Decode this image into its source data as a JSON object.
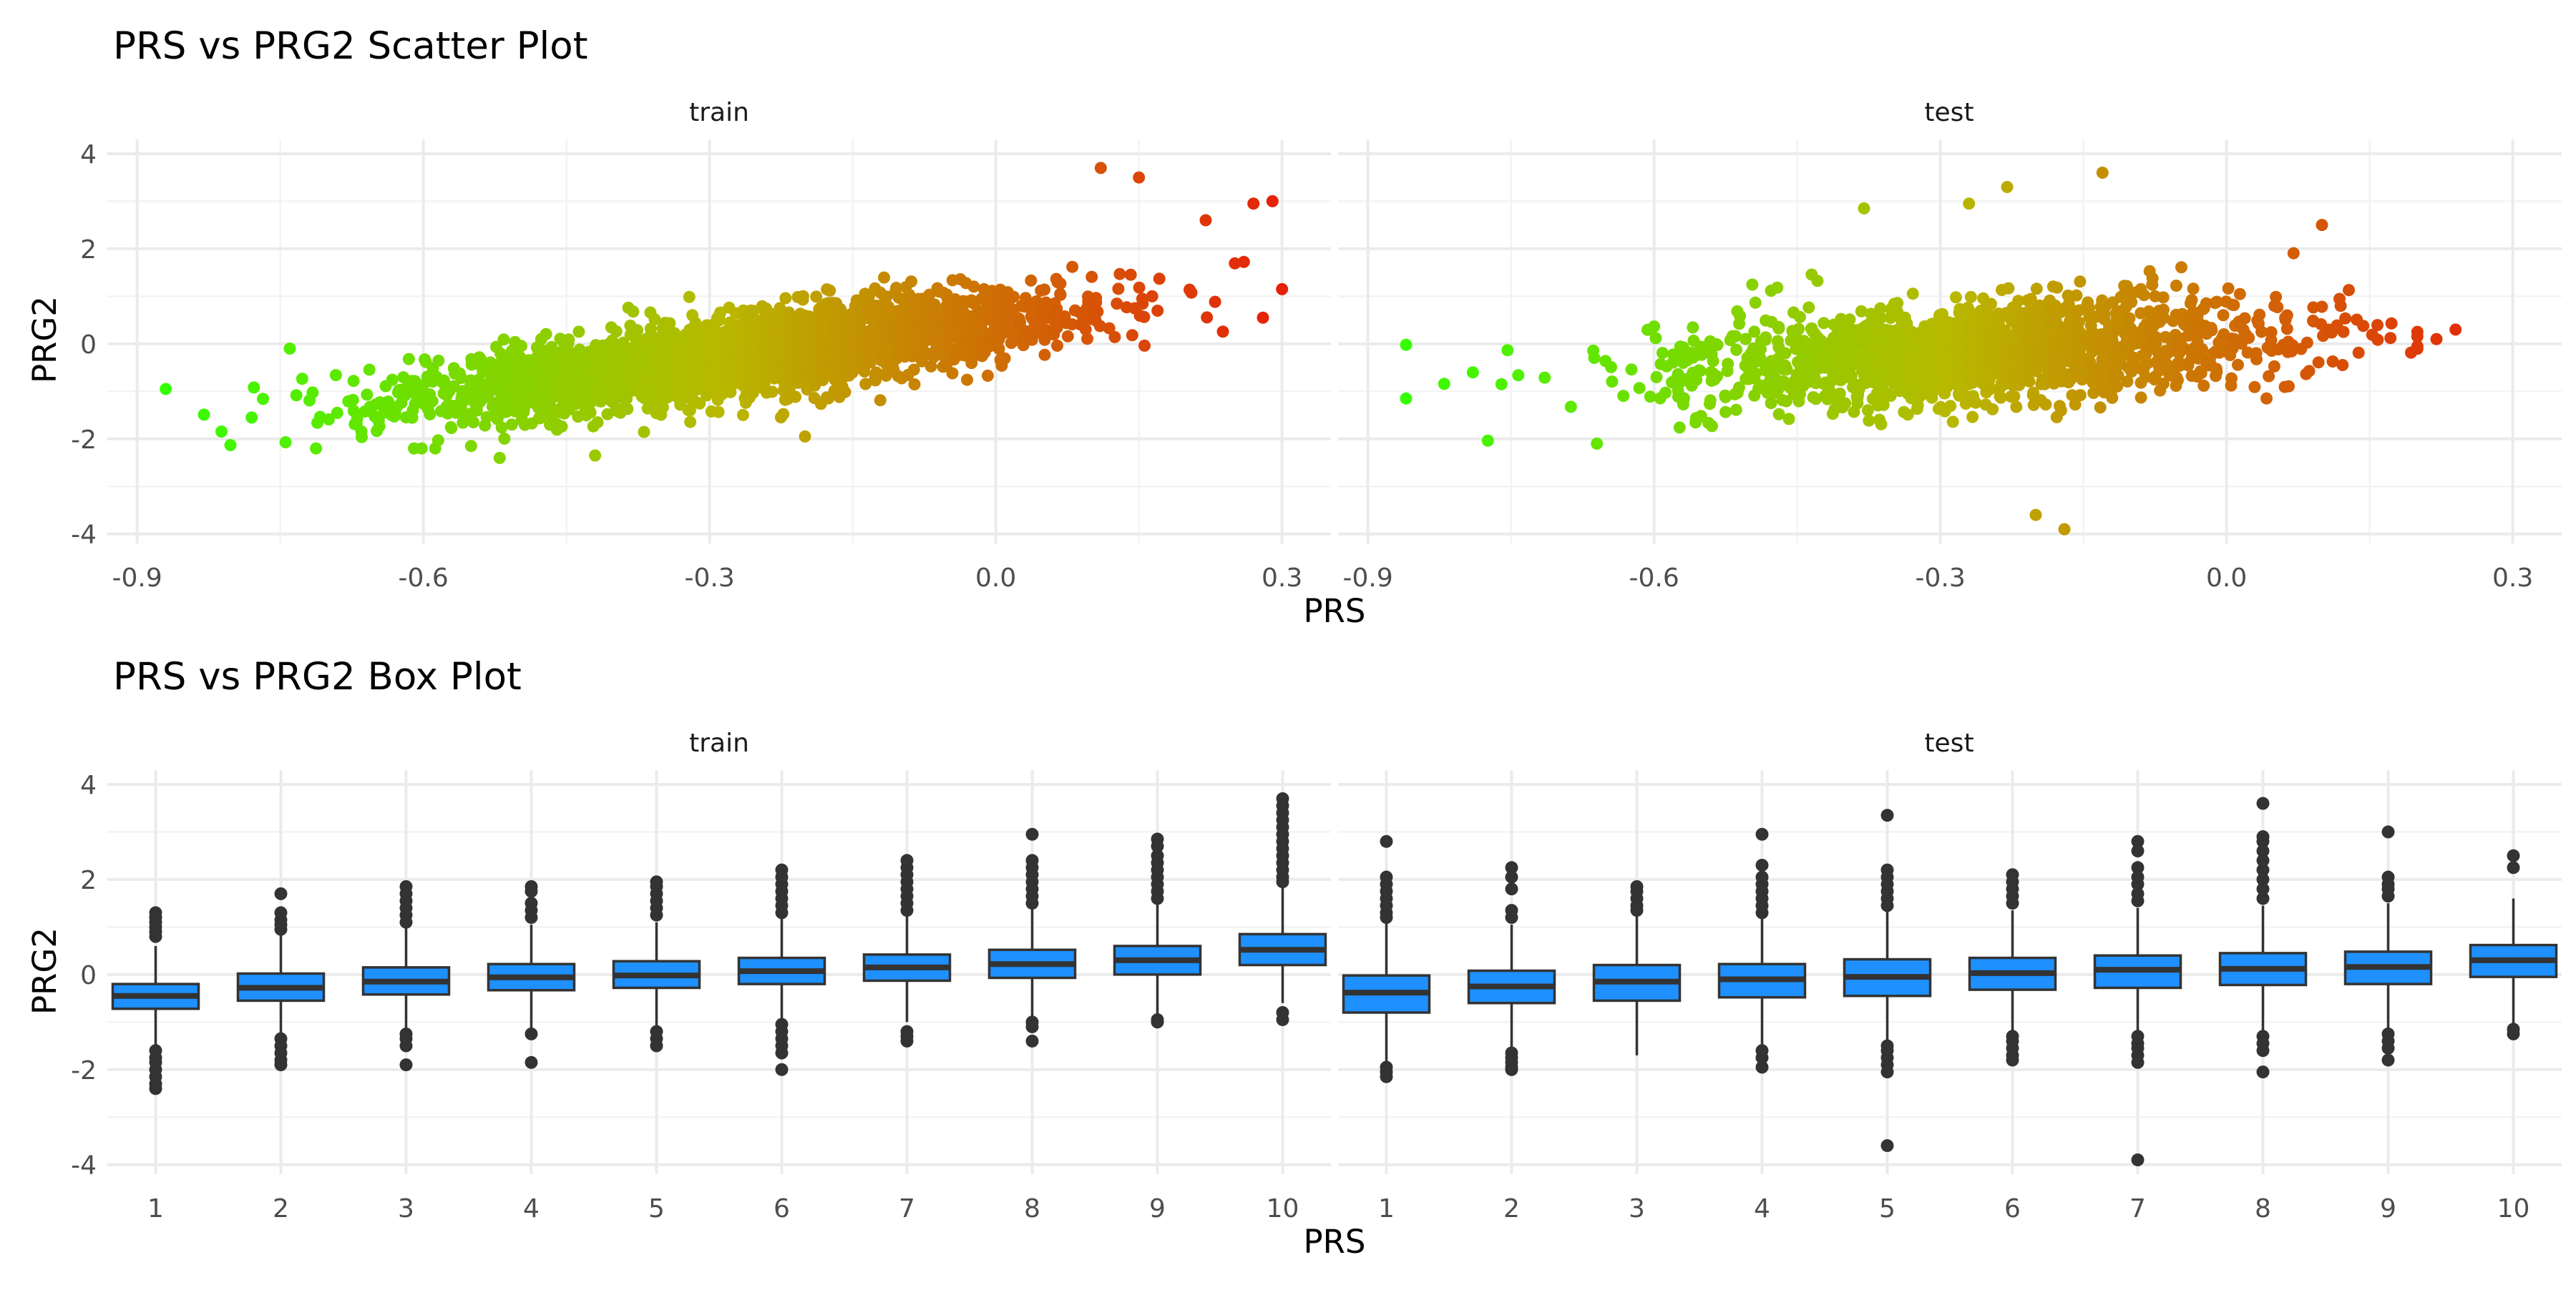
{
  "chart_data": [
    {
      "type": "scatter",
      "title": "PRS vs PRG2 Scatter Plot",
      "xlabel": "PRS",
      "ylabel": "PRG2",
      "facets": [
        "train",
        "test"
      ],
      "xlim": [
        -0.92,
        0.34
      ],
      "ylim": [
        -4.2,
        4.3
      ],
      "xticks": [
        -0.9,
        -0.6,
        -0.3,
        0.0,
        0.3
      ],
      "xtick_labels": [
        "-0.9",
        "-0.6",
        "-0.3",
        "0.0",
        "0.3"
      ],
      "yticks": [
        -4,
        -2,
        0,
        2,
        4
      ],
      "ytick_labels": [
        "-4",
        "-2",
        "0",
        "2",
        "4"
      ],
      "grid": true,
      "color_gradient": {
        "low": "#33ff00",
        "mid": "#b8b800",
        "high": "#e6200a",
        "mapped_to": "PRS"
      },
      "train": {
        "n_points": 2600,
        "approx_trend": {
          "slope": 2.6,
          "intercept": 0.45,
          "residual_sd": 0.42
        },
        "x_range": [
          -0.87,
          0.3
        ],
        "notable_points": [
          {
            "x": -0.87,
            "y": -0.95
          },
          {
            "x": 0.29,
            "y": 3.0
          },
          {
            "x": 0.3,
            "y": 1.15
          },
          {
            "x": 0.28,
            "y": 0.55
          },
          {
            "x": 0.11,
            "y": 3.7
          },
          {
            "x": 0.15,
            "y": 3.5
          },
          {
            "x": 0.27,
            "y": 2.95
          },
          {
            "x": 0.22,
            "y": 2.6
          },
          {
            "x": -0.42,
            "y": -2.35
          },
          {
            "x": -0.52,
            "y": -2.4
          },
          {
            "x": -0.55,
            "y": -2.15
          },
          {
            "x": -0.2,
            "y": -1.95
          },
          {
            "x": -0.78,
            "y": -1.55
          },
          {
            "x": -0.74,
            "y": -0.1
          }
        ]
      },
      "test": {
        "n_points": 1600,
        "approx_trend": {
          "slope": 1.3,
          "intercept": 0.15,
          "residual_sd": 0.55
        },
        "x_range": [
          -0.86,
          0.24
        ],
        "notable_points": [
          {
            "x": -0.86,
            "y": -0.02
          },
          {
            "x": -0.86,
            "y": -1.15
          },
          {
            "x": -0.2,
            "y": -3.6
          },
          {
            "x": -0.17,
            "y": -3.9
          },
          {
            "x": -0.13,
            "y": 3.6
          },
          {
            "x": -0.23,
            "y": 3.3
          },
          {
            "x": -0.38,
            "y": 2.85
          },
          {
            "x": -0.27,
            "y": 2.95
          },
          {
            "x": 0.1,
            "y": 2.5
          },
          {
            "x": 0.24,
            "y": 0.3
          },
          {
            "x": 0.22,
            "y": 0.1
          },
          {
            "x": -0.79,
            "y": -0.6
          },
          {
            "x": -0.76,
            "y": -0.85
          },
          {
            "x": -0.66,
            "y": -2.1
          }
        ]
      }
    },
    {
      "type": "box",
      "title": "PRS vs PRG2 Box Plot",
      "xlabel": "PRS",
      "ylabel": "PRG2",
      "facets": [
        "train",
        "test"
      ],
      "categories": [
        "1",
        "2",
        "3",
        "4",
        "5",
        "6",
        "7",
        "8",
        "9",
        "10"
      ],
      "ylim": [
        -4.2,
        4.3
      ],
      "yticks": [
        -4,
        -2,
        0,
        2,
        4
      ],
      "ytick_labels": [
        "-4",
        "-2",
        "0",
        "2",
        "4"
      ],
      "grid": true,
      "box_fill": "#1e90ff",
      "train": [
        {
          "q1": -0.72,
          "median": -0.45,
          "q3": -0.2,
          "wmin": -1.5,
          "wmax": 0.6,
          "outliers": [
            1.3,
            1.2,
            1.1,
            1.0,
            0.9,
            0.8,
            -1.6,
            -1.75,
            -1.85,
            -2.0,
            -2.15,
            -2.3,
            -2.4
          ]
        },
        {
          "q1": -0.55,
          "median": -0.28,
          "q3": 0.02,
          "wmin": -1.25,
          "wmax": 0.85,
          "outliers": [
            1.7,
            1.3,
            1.15,
            1.05,
            0.95,
            -1.35,
            -1.5,
            -1.65,
            -1.8,
            -1.9
          ]
        },
        {
          "q1": -0.42,
          "median": -0.15,
          "q3": 0.15,
          "wmin": -1.2,
          "wmax": 1.0,
          "outliers": [
            1.85,
            1.7,
            1.55,
            1.4,
            1.25,
            1.1,
            -1.25,
            -1.35,
            -1.5,
            -1.9
          ]
        },
        {
          "q1": -0.33,
          "median": -0.06,
          "q3": 0.22,
          "wmin": -1.15,
          "wmax": 1.05,
          "outliers": [
            1.85,
            1.75,
            1.5,
            1.35,
            1.2,
            -1.25,
            -1.85
          ]
        },
        {
          "q1": -0.28,
          "median": -0.02,
          "q3": 0.28,
          "wmin": -1.1,
          "wmax": 1.1,
          "outliers": [
            1.95,
            1.85,
            1.7,
            1.55,
            1.4,
            1.25,
            -1.2,
            -1.35,
            -1.5
          ]
        },
        {
          "q1": -0.2,
          "median": 0.07,
          "q3": 0.35,
          "wmin": -1.0,
          "wmax": 1.2,
          "outliers": [
            2.2,
            2.05,
            1.9,
            1.75,
            1.6,
            1.45,
            1.3,
            -1.05,
            -1.2,
            -1.35,
            -1.5,
            -1.65,
            -2.0
          ]
        },
        {
          "q1": -0.13,
          "median": 0.15,
          "q3": 0.42,
          "wmin": -1.0,
          "wmax": 1.25,
          "outliers": [
            2.4,
            2.25,
            2.1,
            1.95,
            1.8,
            1.65,
            1.5,
            1.35,
            -1.2,
            -1.3,
            -1.4
          ]
        },
        {
          "q1": -0.07,
          "median": 0.22,
          "q3": 0.52,
          "wmin": -0.9,
          "wmax": 1.4,
          "outliers": [
            2.95,
            2.4,
            2.25,
            2.1,
            1.95,
            1.8,
            1.65,
            1.5,
            -1.0,
            -1.1,
            -1.4
          ]
        },
        {
          "q1": 0.0,
          "median": 0.3,
          "q3": 0.6,
          "wmin": -0.85,
          "wmax": 1.5,
          "outliers": [
            2.85,
            2.7,
            2.5,
            2.35,
            2.2,
            2.05,
            1.9,
            1.75,
            1.6,
            -0.95,
            -1.0
          ]
        },
        {
          "q1": 0.2,
          "median": 0.52,
          "q3": 0.85,
          "wmin": -0.6,
          "wmax": 1.85,
          "outliers": [
            3.7,
            3.55,
            3.4,
            3.25,
            3.1,
            2.95,
            2.8,
            2.65,
            2.5,
            2.35,
            2.2,
            2.05,
            1.95,
            -0.8,
            -0.95
          ]
        }
      ],
      "test": [
        {
          "q1": -0.8,
          "median": -0.38,
          "q3": -0.02,
          "wmin": -1.85,
          "wmax": 1.1,
          "outliers": [
            2.8,
            2.05,
            1.9,
            1.75,
            1.6,
            1.45,
            1.3,
            1.2,
            -1.95,
            -2.05,
            -2.15
          ]
        },
        {
          "q1": -0.6,
          "median": -0.25,
          "q3": 0.08,
          "wmin": -1.6,
          "wmax": 1.05,
          "outliers": [
            2.25,
            2.05,
            1.8,
            1.35,
            1.2,
            -1.65,
            -1.75,
            -1.85,
            -1.95,
            -2.0
          ]
        },
        {
          "q1": -0.55,
          "median": -0.15,
          "q3": 0.2,
          "wmin": -1.7,
          "wmax": 1.3,
          "outliers": [
            1.85,
            1.75,
            1.6,
            1.45,
            1.35
          ]
        },
        {
          "q1": -0.48,
          "median": -0.1,
          "q3": 0.22,
          "wmin": -1.5,
          "wmax": 1.2,
          "outliers": [
            2.95,
            2.3,
            2.05,
            1.9,
            1.75,
            1.6,
            1.45,
            1.3,
            -1.6,
            -1.75,
            -1.95
          ]
        },
        {
          "q1": -0.45,
          "median": -0.05,
          "q3": 0.32,
          "wmin": -1.4,
          "wmax": 1.35,
          "outliers": [
            3.35,
            2.2,
            2.05,
            1.9,
            1.75,
            1.6,
            1.45,
            -1.5,
            -1.6,
            -1.75,
            -1.9,
            -2.05,
            -3.6
          ]
        },
        {
          "q1": -0.32,
          "median": 0.03,
          "q3": 0.35,
          "wmin": -1.2,
          "wmax": 1.35,
          "outliers": [
            2.1,
            1.95,
            1.8,
            1.65,
            1.5,
            -1.3,
            -1.4,
            -1.55,
            -1.7,
            -1.8
          ]
        },
        {
          "q1": -0.28,
          "median": 0.1,
          "q3": 0.4,
          "wmin": -1.2,
          "wmax": 1.4,
          "outliers": [
            2.8,
            2.6,
            2.25,
            2.05,
            1.9,
            1.7,
            1.55,
            -1.3,
            -1.45,
            -1.55,
            -1.7,
            -1.85,
            -3.9
          ]
        },
        {
          "q1": -0.22,
          "median": 0.12,
          "q3": 0.45,
          "wmin": -1.2,
          "wmax": 1.45,
          "outliers": [
            3.6,
            2.9,
            2.8,
            2.6,
            2.4,
            2.2,
            2.0,
            1.8,
            1.6,
            -1.3,
            -1.45,
            -1.6,
            -2.05
          ]
        },
        {
          "q1": -0.2,
          "median": 0.16,
          "q3": 0.48,
          "wmin": -1.15,
          "wmax": 1.5,
          "outliers": [
            3.0,
            2.05,
            1.9,
            1.8,
            1.65,
            -1.25,
            -1.4,
            -1.55,
            -1.8
          ]
        },
        {
          "q1": -0.05,
          "median": 0.3,
          "q3": 0.62,
          "wmin": -1.05,
          "wmax": 1.6,
          "outliers": [
            2.5,
            2.25,
            -1.15,
            -1.25
          ]
        }
      ]
    }
  ]
}
